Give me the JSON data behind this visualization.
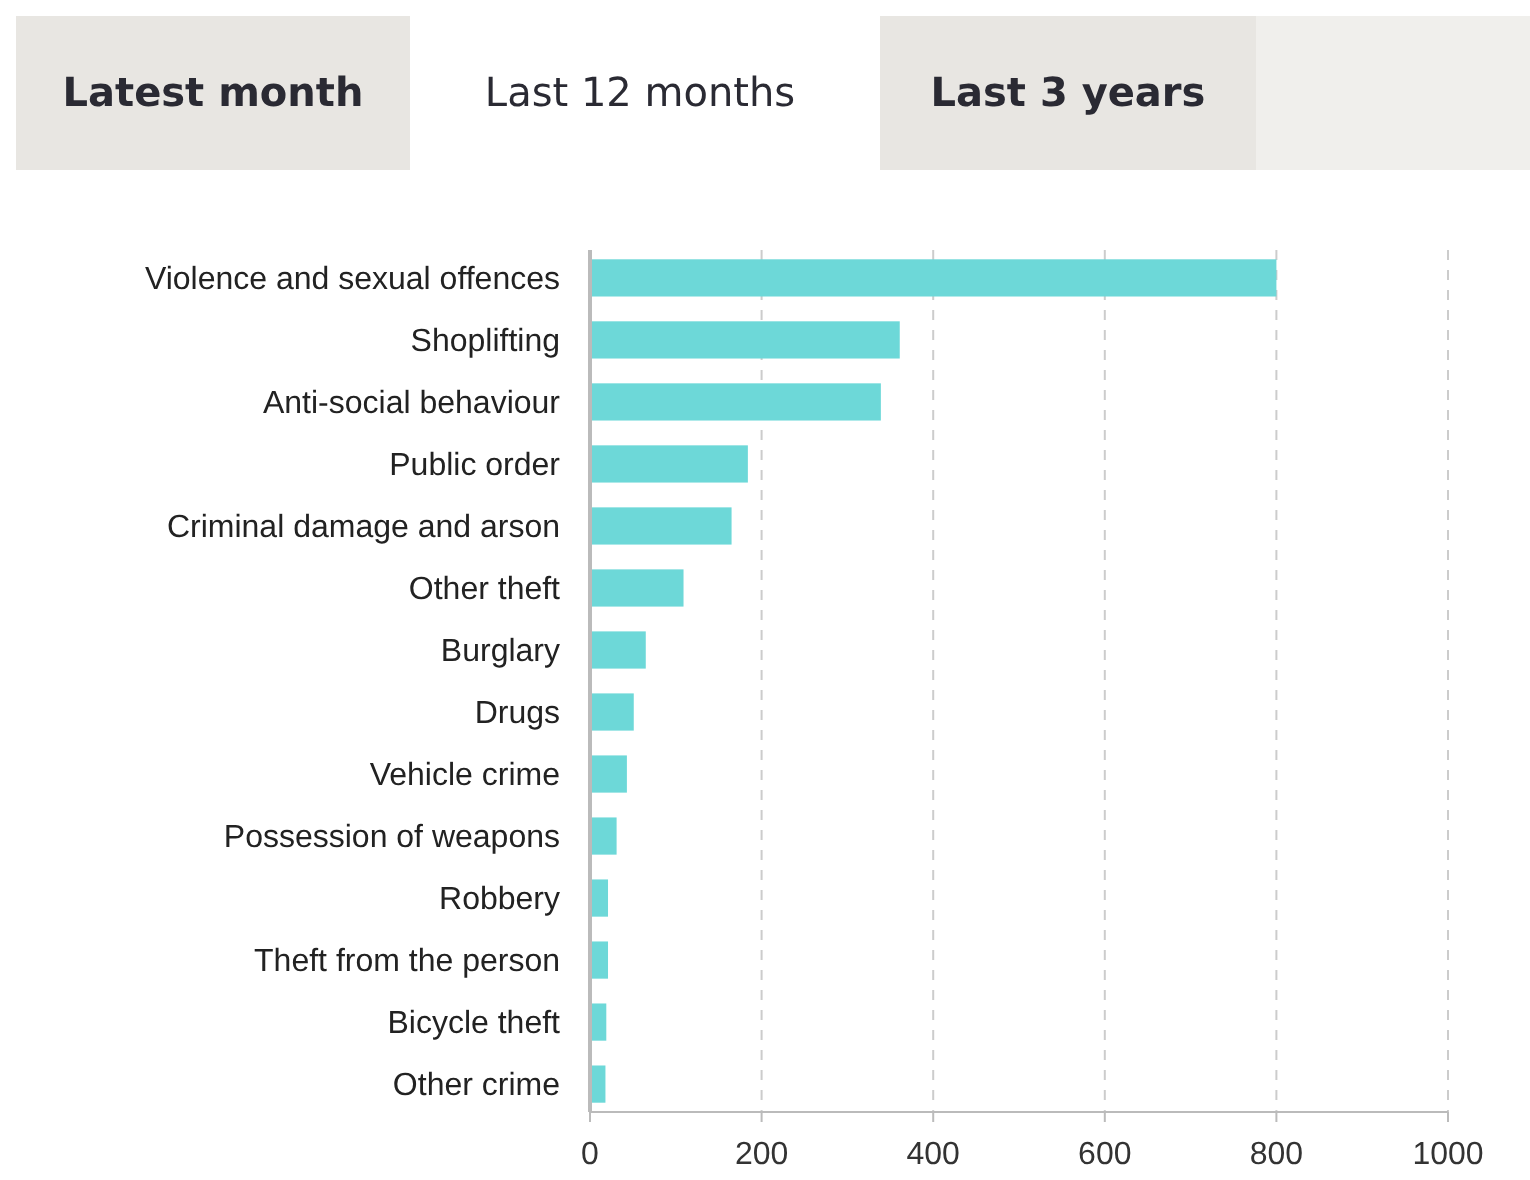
{
  "chart_data": {
    "type": "bar",
    "orientation": "horizontal",
    "categories": [
      "Violence and sexual offences",
      "Shoplifting",
      "Anti-social behaviour",
      "Public order",
      "Criminal damage and arson",
      "Other theft",
      "Burglary",
      "Drugs",
      "Vehicle crime",
      "Possession of weapons",
      "Robbery",
      "Theft from the person",
      "Bicycle theft",
      "Other crime"
    ],
    "values": [
      800,
      361,
      339,
      184,
      165,
      109,
      65,
      51,
      43,
      31,
      21,
      21,
      19,
      18
    ],
    "color": "#6dd8d8",
    "xlim": [
      0,
      1000
    ],
    "xticks": [
      0,
      200,
      400,
      600,
      800,
      1000
    ],
    "grid": "x",
    "annotations": [
      "Latest month",
      "Last 12 months",
      "Last 3 years"
    ]
  }
}
